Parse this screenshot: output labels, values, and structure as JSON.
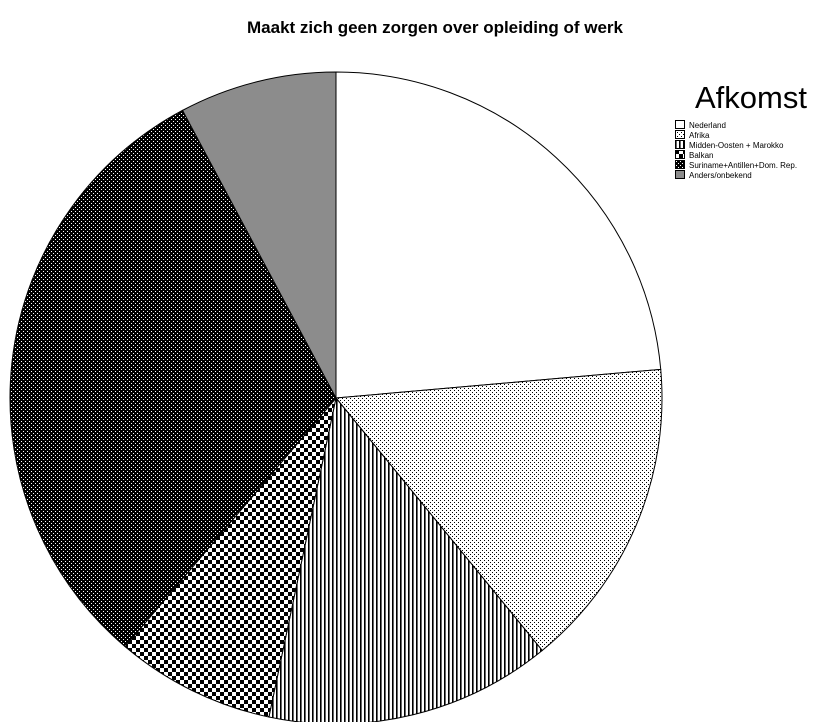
{
  "chart_data": {
    "type": "pie",
    "title": "Maakt zich geen zorgen over opleiding of werk",
    "legend_title": "Afkomst",
    "legend_position": "right",
    "start_angle_deg": 0,
    "direction": "clockwise",
    "categories": [
      "Nederland",
      "Afrika",
      "Midden-Oosten + Marokko",
      "Balkan",
      "Suriname+Antillen+Dom. Rep.",
      "Anders/onbekend"
    ],
    "values": [
      23.6,
      15.5,
      14.2,
      7.9,
      31.0,
      7.8
    ],
    "unit": "percent",
    "fills": [
      "white",
      "dotted",
      "vertical-lines",
      "checker",
      "dense-checker",
      "gray"
    ]
  }
}
